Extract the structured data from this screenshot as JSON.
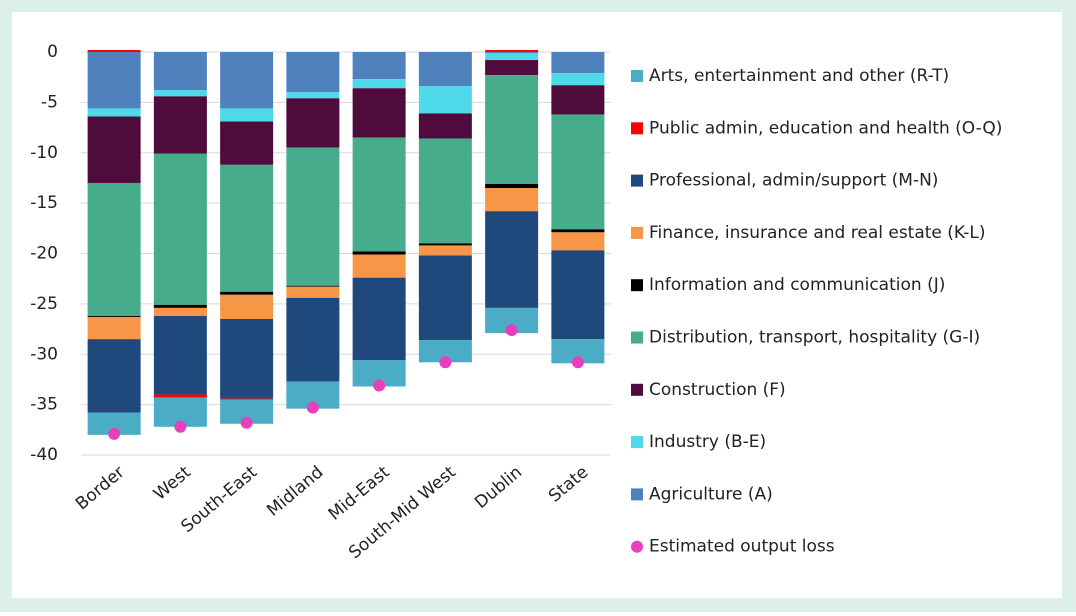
{
  "chart_data": {
    "type": "bar",
    "stacked": true,
    "categories": [
      "Border",
      "West",
      "South-East",
      "Midland",
      "Mid-East",
      "South-Mid West",
      "Dublin",
      "State"
    ],
    "ylim": [
      -40,
      0
    ],
    "yticks": [
      0,
      -5,
      -10,
      -15,
      -20,
      -25,
      -30,
      -35,
      -40
    ],
    "grid": true,
    "legend": "right",
    "series": [
      {
        "name": "Agriculture (A)",
        "color": "#4f81bd",
        "values": [
          -5.6,
          -3.8,
          -5.6,
          -4.0,
          -2.7,
          -3.4,
          -0.1,
          -2.1
        ]
      },
      {
        "name": "Industry (B-E)",
        "color": "#4dd9e8",
        "values": [
          -0.8,
          -0.6,
          -1.3,
          -0.6,
          -0.9,
          -2.7,
          -0.7,
          -1.2
        ]
      },
      {
        "name": "Construction (F)",
        "color": "#4f0b3b",
        "values": [
          -6.6,
          -5.7,
          -4.3,
          -4.9,
          -4.9,
          -2.5,
          -1.5,
          -2.9
        ]
      },
      {
        "name": "Distribution, transport, hospitality (G-I)",
        "color": "#46ac8c",
        "values": [
          -13.2,
          -15.0,
          -12.6,
          -13.7,
          -11.3,
          -10.4,
          -10.8,
          -11.4
        ]
      },
      {
        "name": "Information and communication (J)",
        "color": "#000000",
        "values": [
          -0.1,
          -0.3,
          -0.3,
          -0.1,
          -0.3,
          -0.2,
          -0.4,
          -0.3
        ]
      },
      {
        "name": "Finance, insurance and real estate (K-L)",
        "color": "#f79646",
        "values": [
          -2.2,
          -0.8,
          -2.4,
          -1.1,
          -2.3,
          -1.0,
          -2.3,
          -1.8
        ]
      },
      {
        "name": "Professional, admin/support (M-N)",
        "color": "#1f497d",
        "values": [
          -7.3,
          -7.8,
          -7.9,
          -8.3,
          -8.2,
          -8.4,
          -9.6,
          -8.8
        ]
      },
      {
        "name": "Public admin, education and health (O-Q)",
        "color": "#ff0000",
        "values": [
          0.2,
          -0.3,
          -0.1,
          0,
          0,
          0,
          0.2,
          0
        ]
      },
      {
        "name": "Arts, entertainment and other (R-T)",
        "color": "#4bacc6",
        "values": [
          -2.2,
          -2.9,
          -2.4,
          -2.7,
          -2.6,
          -2.2,
          -2.5,
          -2.4
        ]
      },
      {
        "name": "Estimated output loss",
        "color": "#e83fbf",
        "type": "scatter",
        "values": [
          -37.9,
          -37.2,
          -36.8,
          -35.3,
          -33.1,
          -30.8,
          -27.6,
          -30.8
        ]
      }
    ]
  }
}
